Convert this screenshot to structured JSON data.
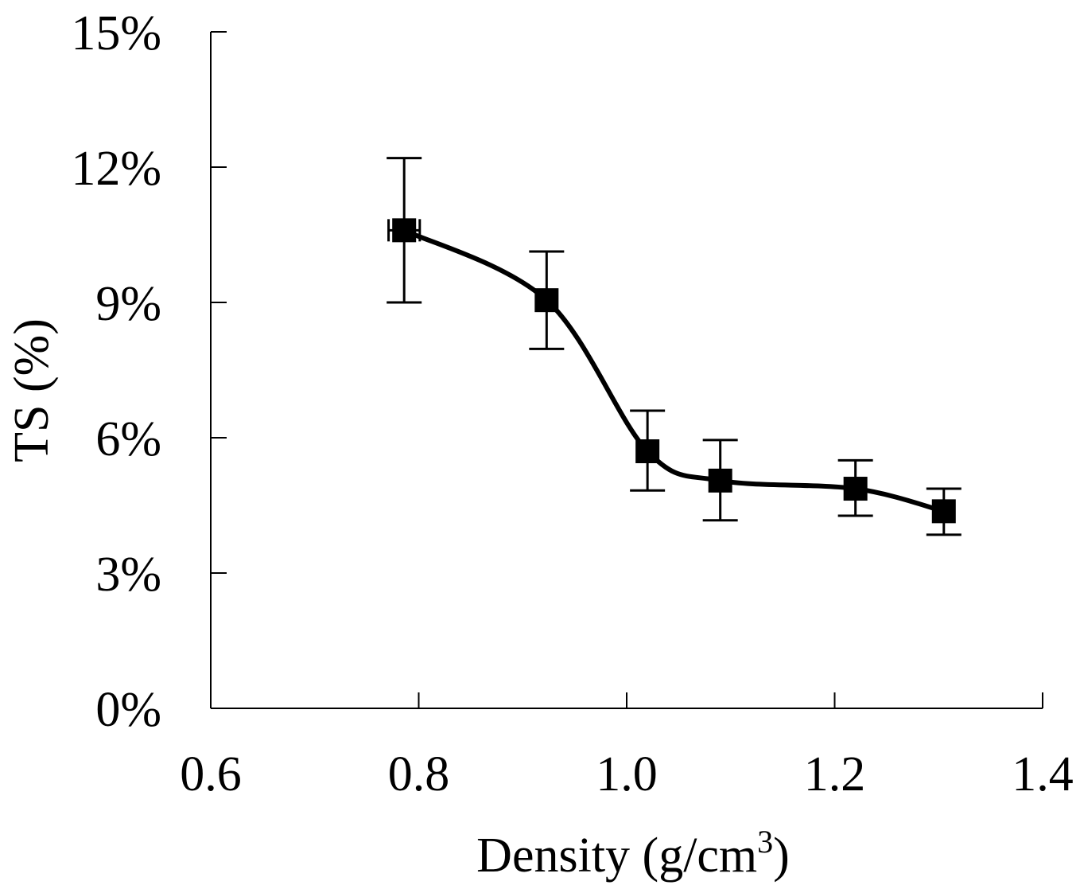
{
  "chart_data": {
    "type": "scatter",
    "title": "",
    "xlabel": "Density (g/cm",
    "xlabel_superscript": "3",
    "xlabel_suffix": ")",
    "ylabel": "TS (%)",
    "xlim": [
      0.6,
      1.4
    ],
    "ylim": [
      0,
      15
    ],
    "x_ticks": [
      0.6,
      0.8,
      1.0,
      1.2,
      1.4
    ],
    "x_tick_labels": [
      "0.6",
      "0.8",
      "1.0",
      "1.2",
      "1.4"
    ],
    "y_ticks": [
      0,
      3,
      6,
      9,
      12,
      15
    ],
    "y_tick_labels": [
      "0%",
      "3%",
      "6%",
      "9%",
      "12%",
      "15%"
    ],
    "grid": false,
    "series": [
      {
        "name": "TS",
        "marker": "square",
        "line": "smooth",
        "color": "#000000",
        "x": [
          0.786,
          0.923,
          1.02,
          1.09,
          1.22,
          1.305
        ],
        "y": [
          10.6,
          9.05,
          5.7,
          5.05,
          4.87,
          4.37
        ],
        "y_err_low": [
          9.0,
          7.97,
          4.83,
          4.17,
          4.27,
          3.85
        ],
        "y_err_high": [
          12.2,
          10.13,
          6.6,
          5.95,
          5.5,
          4.87
        ],
        "x_err": [
          0.015,
          0.0,
          0.0,
          0.0,
          0.0,
          0.0
        ]
      }
    ]
  }
}
